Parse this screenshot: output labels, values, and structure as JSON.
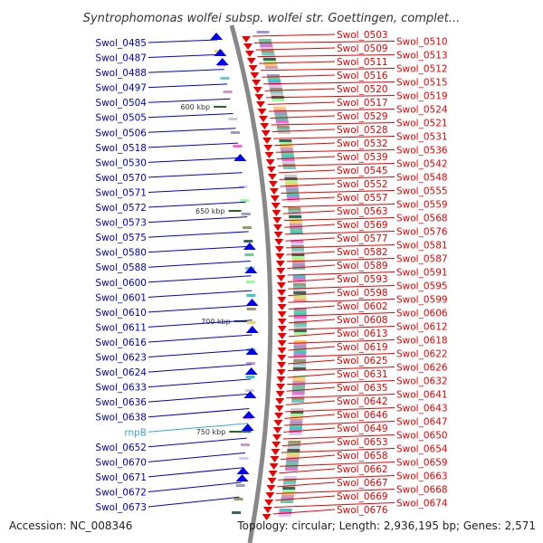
{
  "title": "Syntrophomonas wolfei subsp. wolfei str. Goettingen, complet...",
  "footer": {
    "accession": "Accession: NC_008346",
    "topology": "Topology: circular; Length: 2,936,195 bp; Genes: 2,571"
  },
  "scale_labels": [
    "600 kbp",
    "650 kbp",
    "700 kbp",
    "750 kbp"
  ],
  "colors": {
    "left_labels": "#0000cc",
    "right_labels": "#ee0000",
    "rna_label": "#33aacc",
    "backbone": "#888888",
    "forward_strand": "#ee0000",
    "reverse_strand": "#0000ee"
  },
  "left_genes": [
    "Swol_0485",
    "Swol_0487",
    "Swol_0488",
    "Swol_0497",
    "Swol_0504",
    "Swol_0505",
    "Swol_0506",
    "Swol_0518",
    "Swol_0530",
    "Swol_0570",
    "Swol_0571",
    "Swol_0572",
    "Swol_0573",
    "Swol_0575",
    "Swol_0580",
    "Swol_0588",
    "Swol_0600",
    "Swol_0601",
    "Swol_0610",
    "Swol_0611",
    "Swol_0616",
    "Swol_0623",
    "Swol_0624",
    "Swol_0633",
    "Swol_0636",
    "Swol_0638",
    "rnpB",
    "Swol_0652",
    "Swol_0670",
    "Swol_0671",
    "Swol_0672",
    "Swol_0673"
  ],
  "right_genes": [
    "Swol_0503",
    "Swol_0510",
    "Swol_0509",
    "Swol_0513",
    "Swol_0511",
    "Swol_0512",
    "Swol_0516",
    "Swol_0515",
    "Swol_0520",
    "Swol_0519",
    "Swol_0517",
    "Swol_0524",
    "Swol_0529",
    "Swol_0521",
    "Swol_0528",
    "Swol_0531",
    "Swol_0532",
    "Swol_0536",
    "Swol_0539",
    "Swol_0542",
    "Swol_0545",
    "Swol_0548",
    "Swol_0552",
    "Swol_0555",
    "Swol_0557",
    "Swol_0559",
    "Swol_0563",
    "Swol_0568",
    "Swol_0569",
    "Swol_0576",
    "Swol_0577",
    "Swol_0581",
    "Swol_0582",
    "Swol_0587",
    "Swol_0589",
    "Swol_0591",
    "Swol_0593",
    "Swol_0595",
    "Swol_0598",
    "Swol_0599",
    "Swol_0602",
    "Swol_0606",
    "Swol_0608",
    "Swol_0612",
    "Swol_0613",
    "Swol_0618",
    "Swol_0619",
    "Swol_0622",
    "Swol_0625",
    "Swol_0626",
    "Swol_0631",
    "Swol_0632",
    "Swol_0635",
    "Swol_0641",
    "Swol_0642",
    "Swol_0643",
    "Swol_0646",
    "Swol_0647",
    "Swol_0649",
    "Swol_0650",
    "Swol_0653",
    "Swol_0654",
    "Swol_0658",
    "Swol_0659",
    "Swol_0662",
    "Swol_0663",
    "Swol_0667",
    "Swol_0668",
    "Swol_0669",
    "Swol_0674",
    "Swol_0676"
  ]
}
